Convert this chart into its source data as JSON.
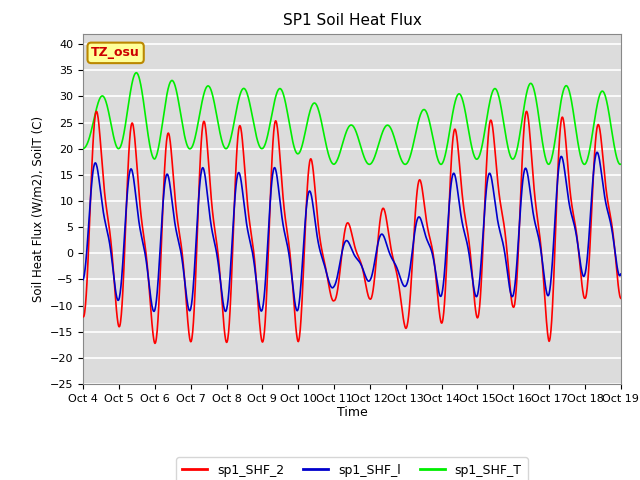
{
  "title": "SP1 Soil Heat Flux",
  "xlabel": "Time",
  "ylabel": "Soil Heat Flux (W/m2), SoilT (C)",
  "ylim": [
    -25,
    42
  ],
  "yticks": [
    -25,
    -20,
    -15,
    -10,
    -5,
    0,
    5,
    10,
    15,
    20,
    25,
    30,
    35,
    40
  ],
  "tz_label": "TZ_osu",
  "tz_bg": "#FFFF99",
  "tz_border": "#BB8800",
  "tz_text_color": "#CC0000",
  "background_color": "#DCDCDC",
  "line_colors": {
    "sp1_SHF_2": "#FF0000",
    "sp1_SHF_1": "#0000CC",
    "sp1_SHF_T": "#00EE00"
  },
  "legend_labels": [
    "sp1_SHF_2",
    "sp1_SHF_l",
    "sp1_SHF_T"
  ],
  "x_tick_labels": [
    "Oct 4",
    "Oct 5",
    "Oct 6",
    "Oct 7",
    "Oct 8",
    "Oct 9",
    "Oct 10",
    "Oct 11",
    "Oct 12",
    "Oct 13",
    "Oct 14",
    "Oct 15",
    "Oct 16",
    "Oct 17",
    "Oct 18",
    "Oct 19"
  ],
  "n_days": 15,
  "points_per_day": 96
}
